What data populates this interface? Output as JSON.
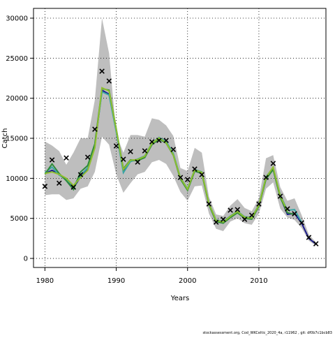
{
  "chart_data": {
    "type": "line",
    "xlabel": "Years",
    "ylabel": "Catch",
    "footer": "stockassessment.org, Cod_WKCeltic_2020_4a, r11962 , git: df0b7c1bcb83",
    "grid": true,
    "x": [
      1980,
      1981,
      1982,
      1983,
      1984,
      1985,
      1986,
      1987,
      1988,
      1989,
      1990,
      1991,
      1992,
      1993,
      1994,
      1995,
      1996,
      1997,
      1998,
      1999,
      2000,
      2001,
      2002,
      2003,
      2004,
      2005,
      2006,
      2007,
      2008,
      2009,
      2010,
      2011,
      2012,
      2013,
      2014,
      2015,
      2016,
      2017,
      2018
    ],
    "xlim": [
      1978.4,
      2019.4
    ],
    "ylim": [
      -1130,
      31220
    ],
    "xticks": [
      1980,
      1990,
      2000,
      2010
    ],
    "yticks": [
      0,
      5000,
      10000,
      15000,
      20000,
      25000,
      30000
    ],
    "band": {
      "color": "#bebebe",
      "upper": [
        14600,
        14100,
        13400,
        11700,
        13200,
        15000,
        15000,
        19800,
        30000,
        25600,
        15500,
        13200,
        15400,
        15400,
        15200,
        17500,
        17300,
        16600,
        15300,
        11300,
        10900,
        13800,
        13200,
        7700,
        5500,
        5300,
        6600,
        7400,
        6300,
        5900,
        7500,
        12500,
        12900,
        8900,
        7200,
        7500,
        5400,
        3000,
        2000
      ],
      "lower": [
        7900,
        8000,
        8000,
        7300,
        7500,
        8700,
        9000,
        10800,
        15200,
        14200,
        10500,
        8200,
        9400,
        10500,
        10800,
        12000,
        12300,
        11800,
        10300,
        8300,
        7200,
        9000,
        9100,
        5600,
        3700,
        3400,
        4600,
        5000,
        4400,
        4200,
        5600,
        8700,
        9500,
        6200,
        5100,
        4800,
        3800,
        2200,
        1600
      ]
    },
    "series": [
      {
        "color": "#1a1a8c",
        "values": [
          10600,
          11000,
          10500,
          9800,
          8800,
          10200,
          11200,
          14000,
          21000,
          20500,
          16000,
          11000,
          12200,
          12300,
          12700,
          14300,
          15000,
          14500,
          13000,
          10000,
          8600,
          11000,
          10700,
          6800,
          4700,
          4500,
          5200,
          5800,
          5100,
          5000,
          6600,
          10000,
          11200,
          7700,
          5500,
          5600,
          4400,
          2500,
          1800
        ]
      },
      {
        "color": "#3aa5a5",
        "values": [
          10700,
          11400,
          10400,
          9900,
          9000,
          10400,
          11300,
          14200,
          20800,
          20400,
          15800,
          10700,
          12100,
          12400,
          12800,
          14400,
          15100,
          14600,
          13100,
          10100,
          8700,
          11100,
          10800,
          6900,
          4800,
          4600,
          5300,
          5900,
          5200,
          5100,
          6700,
          10200,
          11300,
          7900,
          6000,
          6100,
          4500,
          null,
          null
        ]
      },
      {
        "color": "#2e8b3a",
        "values": [
          10500,
          11800,
          10600,
          9700,
          8600,
          10800,
          11600,
          14300,
          21200,
          21000,
          16200,
          11200,
          12300,
          12200,
          12600,
          14200,
          14900,
          14400,
          12900,
          9900,
          8500,
          10900,
          10600,
          6700,
          4600,
          4400,
          5100,
          5700,
          5000,
          4900,
          6500,
          9900,
          11100,
          7600,
          5700,
          5500,
          null,
          null,
          null
        ]
      },
      {
        "color": "#8fbf2f",
        "values": [
          10600,
          10800,
          10500,
          10000,
          9100,
          10100,
          11000,
          13800,
          21300,
          20900,
          16100,
          11100,
          12250,
          12350,
          12750,
          14350,
          15050,
          14450,
          12950,
          10050,
          8650,
          11050,
          10750,
          6850,
          4750,
          4550,
          5250,
          5850,
          5150,
          5050,
          6650,
          10100,
          11400,
          7800,
          5900,
          null,
          null,
          null,
          null
        ]
      }
    ],
    "observations": {
      "color": "#000000",
      "values": [
        9000,
        12300,
        9400,
        12550,
        8900,
        10460,
        12640,
        16130,
        23370,
        22150,
        14040,
        12380,
        13340,
        12030,
        13430,
        14560,
        14730,
        14730,
        13600,
        10110,
        9850,
        11160,
        10460,
        6800,
        4530,
        4880,
        6020,
        6100,
        4880,
        5400,
        6800,
        10110,
        11860,
        7760,
        6190,
        5580,
        4450,
        2620,
        1830
      ]
    }
  }
}
